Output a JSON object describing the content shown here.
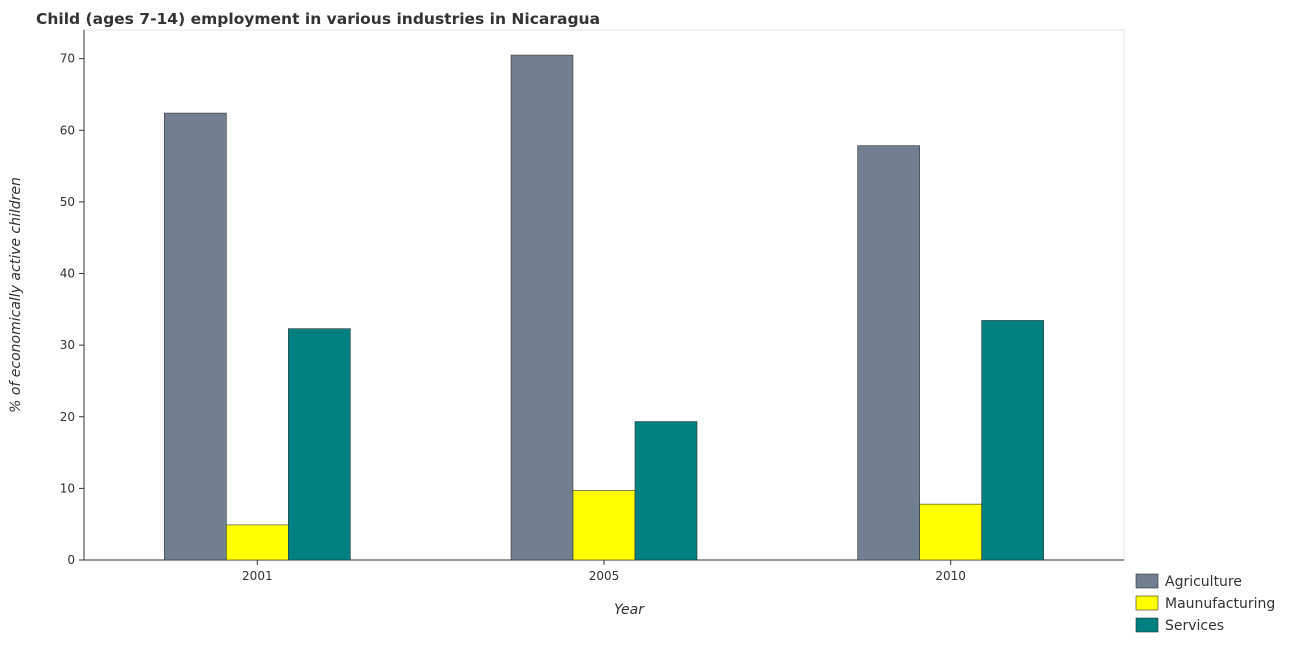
{
  "chart_data": {
    "type": "bar",
    "title": "Child (ages 7-14) employment in various industries in Nicaragua",
    "xlabel": "Year",
    "ylabel": "% of economically active children",
    "categories": [
      "2001",
      "2005",
      "2010"
    ],
    "ylim": [
      0,
      74
    ],
    "yticks": [
      0,
      10,
      20,
      30,
      40,
      50,
      60,
      70
    ],
    "grid": false,
    "legend_position": "bottom-right",
    "series": [
      {
        "name": "Agriculture",
        "color": "#708090",
        "values": [
          62.4,
          70.5,
          57.85
        ]
      },
      {
        "name": "Maunufacturing",
        "color": "#ffff00",
        "values": [
          4.9,
          9.7,
          7.8
        ]
      },
      {
        "name": "Services",
        "color": "#008080",
        "values": [
          32.3,
          19.33,
          33.45
        ]
      }
    ]
  }
}
